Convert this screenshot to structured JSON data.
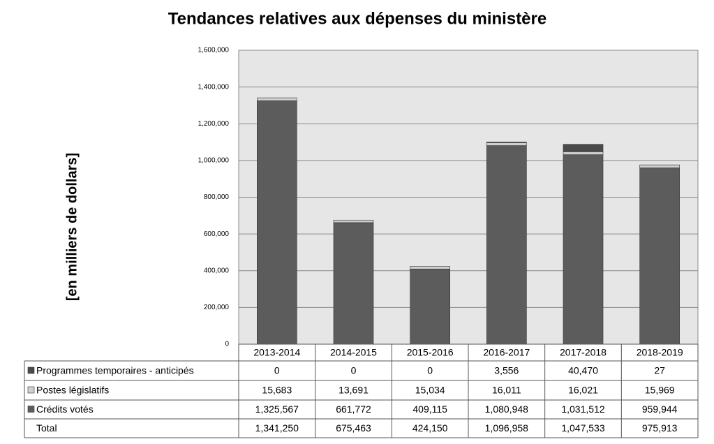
{
  "chart_data": {
    "type": "stacked_bar",
    "title": "Tendances relatives aux dépenses du ministère",
    "y_label": "[en milliers de dollars]",
    "categories": [
      "2013-2014",
      "2014-2015",
      "2015-2016",
      "2016-2017",
      "2017-2018",
      "2018-2019"
    ],
    "series": [
      {
        "name": "Programmes temporaires - anticipés",
        "color": "#4a4a4a",
        "values": [
          0,
          0,
          0,
          3556,
          40470,
          27
        ],
        "value_labels": [
          "0",
          "0",
          "0",
          "3,556",
          "40,470",
          "27"
        ]
      },
      {
        "name": "Postes législatifs",
        "color": "#cfcfcf",
        "values": [
          15683,
          13691,
          15034,
          16011,
          16021,
          15969
        ],
        "value_labels": [
          "15,683",
          "13,691",
          "15,034",
          "16,011",
          "16,021",
          "15,969"
        ]
      },
      {
        "name": "Crédits votés",
        "color": "#5c5c5c",
        "values": [
          1325567,
          661772,
          409115,
          1080948,
          1031512,
          959944
        ],
        "value_labels": [
          "1,325,567",
          "661,772",
          "409,115",
          "1,080,948",
          "1,031,512",
          "959,944"
        ]
      }
    ],
    "totals": {
      "name": "Total",
      "values": [
        1341250,
        675463,
        424150,
        1096958,
        1047533,
        975913
      ],
      "value_labels": [
        "1,341,250",
        "675,463",
        "424,150",
        "1,096,958",
        "1,047,533",
        "975,913"
      ]
    },
    "ylim": [
      0,
      1600000
    ],
    "yticks": [
      0,
      {
        "value": 200000,
        "label": "200,000"
      },
      {
        "value": 400000,
        "label": "400,000"
      },
      {
        "value": 600000,
        "label": "600,000"
      },
      {
        "value": 800000,
        "label": "800,000"
      },
      {
        "value": 1000000,
        "label": "1,000,000"
      },
      {
        "value": 1200000,
        "label": "1,200,000"
      },
      {
        "value": 1400000,
        "label": "1,400,000"
      },
      {
        "value": 1600000,
        "label": "1,600,000"
      }
    ],
    "grid": true
  }
}
